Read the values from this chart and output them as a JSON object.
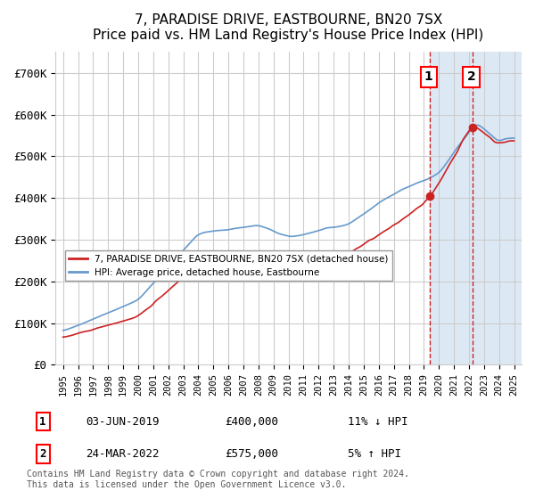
{
  "title": "7, PARADISE DRIVE, EASTBOURNE, BN20 7SX",
  "subtitle": "Price paid vs. HM Land Registry's House Price Index (HPI)",
  "ylabel": "",
  "ylim": [
    0,
    750000
  ],
  "yticks": [
    0,
    100000,
    200000,
    300000,
    400000,
    500000,
    600000,
    700000
  ],
  "ytick_labels": [
    "£0",
    "£100K",
    "£200K",
    "£300K",
    "£400K",
    "£500K",
    "£600K",
    "£700K"
  ],
  "background_color": "#ffffff",
  "grid_color": "#cccccc",
  "hpi_color": "#6699cc",
  "price_color": "#cc2222",
  "sale1_date": "03-JUN-2019",
  "sale1_price": 400000,
  "sale1_hpi_diff": "11% ↓ HPI",
  "sale2_date": "24-MAR-2022",
  "sale2_price": 575000,
  "sale2_hpi_diff": "5% ↑ HPI",
  "legend_label_price": "7, PARADISE DRIVE, EASTBOURNE, BN20 7SX (detached house)",
  "legend_label_hpi": "HPI: Average price, detached house, Eastbourne",
  "footnote": "Contains HM Land Registry data © Crown copyright and database right 2024.\nThis data is licensed under the Open Government Licence v3.0.",
  "highlight_bg": "#dce9f5"
}
